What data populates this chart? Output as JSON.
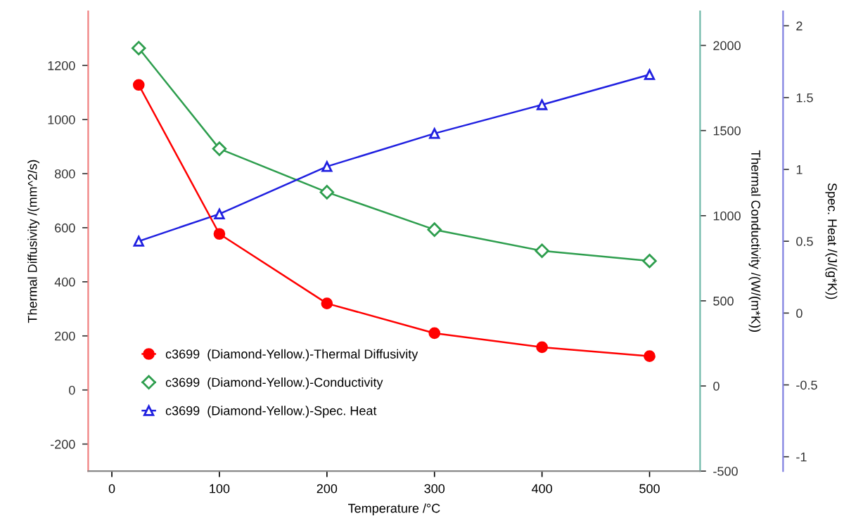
{
  "chart_data": {
    "type": "line",
    "xlabel": "Temperature /°C",
    "ylabel": "Thermal Diffusivity /(mm^2/s)",
    "y2label": "Thermal Conductivity /(W/(m*K))",
    "y3label": "Spec. Heat /(J/(g*K))",
    "x": [
      25,
      100,
      200,
      300,
      400,
      500
    ],
    "series": [
      {
        "name": "c3699  (Diamond-Yellow.)-Thermal Diffusivity",
        "color": "#ff0000",
        "marker": "circle",
        "values": [
          1128,
          577,
          320,
          210,
          158,
          125
        ]
      },
      {
        "name": "c3699  (Diamond-Yellow.)-Conductivity",
        "color": "#2e9e4e",
        "marker": "diamond",
        "axis": "y2",
        "values": [
          1984,
          1393,
          1138,
          918,
          794,
          734
        ]
      },
      {
        "name": "c3699  (Diamond-Yellow.)-Spec. Heat",
        "color": "#2020e0",
        "marker": "triangle",
        "axis": "y3",
        "values": [
          0.5,
          0.69,
          1.02,
          1.25,
          1.45,
          1.66
        ]
      }
    ],
    "xlim": [
      -22,
      547
    ],
    "xticks": [
      0,
      100,
      200,
      300,
      400,
      500
    ],
    "ylim": [
      -300,
      1400
    ],
    "yticks": [
      -200,
      0,
      200,
      400,
      600,
      800,
      1000,
      1200
    ],
    "y2lim": [
      -500,
      2200
    ],
    "y2ticks": [
      -500,
      0,
      500,
      1000,
      1500,
      2000
    ],
    "y3lim": [
      -1.1,
      2.1
    ],
    "y3ticks": [
      -1,
      -0.5,
      0,
      0.5,
      1,
      1.5,
      2
    ],
    "grid": false,
    "legend": "bottom left"
  }
}
